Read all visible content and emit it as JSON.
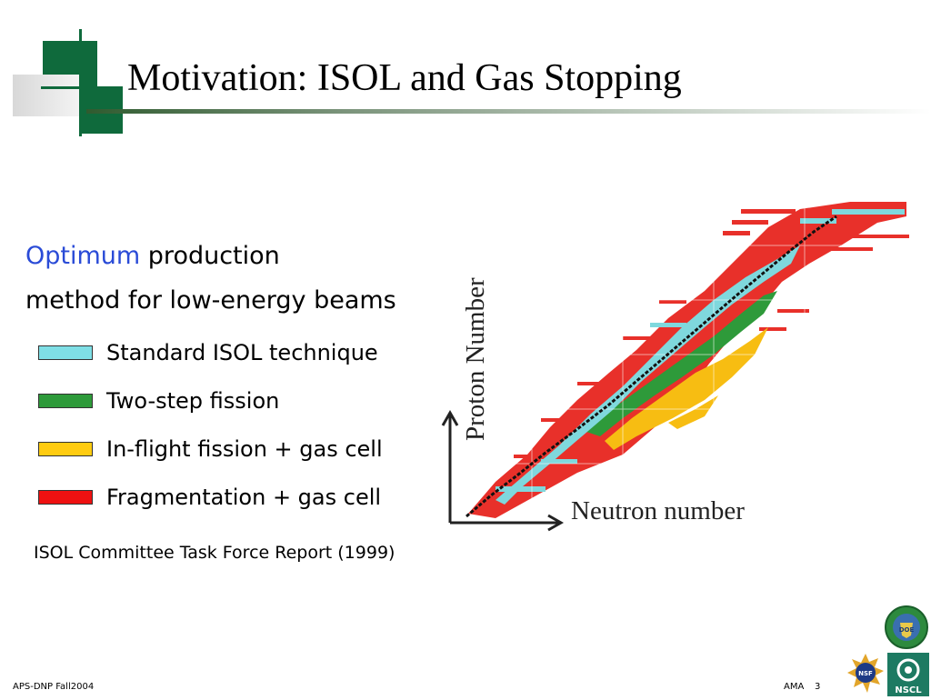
{
  "slide": {
    "title": "Motivation: ISOL and Gas Stopping",
    "intro_line1_highlight": "Optimum",
    "intro_line1_rest": "production",
    "intro_line2": "method for low-energy beams",
    "citation": "ISOL Committee Task Force Report (1999)"
  },
  "legend": [
    {
      "label": "Standard ISOL technique",
      "color": "#7fdfe6"
    },
    {
      "label": "Two-step fission",
      "color": "#2e9a3a"
    },
    {
      "label": "In-flight fission + gas cell",
      "color": "#ffcc11"
    },
    {
      "label": "Fragmentation + gas cell",
      "color": "#ee1111"
    }
  ],
  "chart": {
    "ylabel": "Proton Number",
    "xlabel": "Neutron number"
  },
  "footer": {
    "left": "APS-DNP Fall2004",
    "author": "AMA",
    "page": "3"
  },
  "logos": {
    "doe_text": "DOE",
    "nsf_text": "NSF",
    "nscl_text": "NSCL"
  },
  "colors": {
    "accent_text": "#2a4bd7",
    "title_green": "#1f5e3a"
  }
}
